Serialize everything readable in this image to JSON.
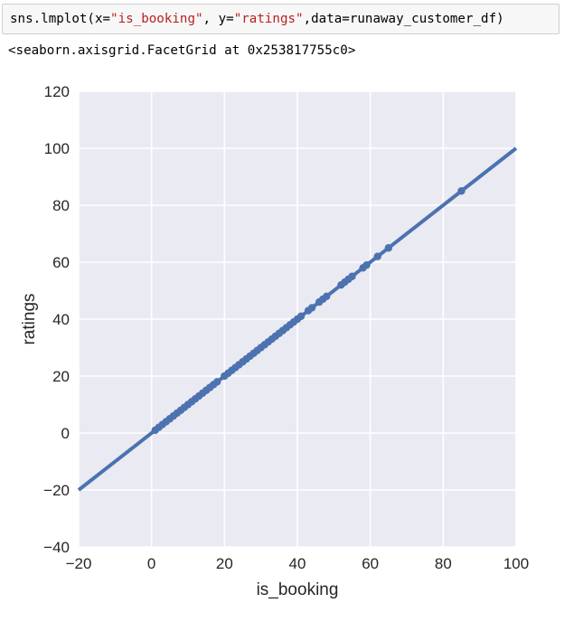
{
  "cell": {
    "code_parts": [
      {
        "text": "sns.lmplot(x=",
        "type": "plain"
      },
      {
        "text": "\"is_booking\"",
        "type": "str"
      },
      {
        "text": ", y=",
        "type": "plain"
      },
      {
        "text": "\"ratings\"",
        "type": "str"
      },
      {
        "text": ",data=runaway_customer_df)",
        "type": "plain"
      }
    ],
    "output": "<seaborn.axisgrid.FacetGrid at 0x253817755c0>"
  },
  "chart_data": {
    "type": "scatter",
    "xlabel": "is_booking",
    "ylabel": "ratings",
    "xlim": [
      -20,
      100
    ],
    "ylim": [
      -40,
      120
    ],
    "x_ticks": [
      -20,
      0,
      20,
      40,
      60,
      80,
      100
    ],
    "y_ticks": [
      -40,
      -20,
      0,
      20,
      40,
      60,
      80,
      100,
      120
    ],
    "grid": true,
    "point_color": "#4c72b0",
    "background_color": "#eaeaf2",
    "regression_line": {
      "slope": 1,
      "intercept": 0,
      "x_range": [
        -20,
        100
      ]
    },
    "points": [
      {
        "x": 1,
        "y": 1
      },
      {
        "x": 2,
        "y": 2
      },
      {
        "x": 3,
        "y": 3
      },
      {
        "x": 4,
        "y": 4
      },
      {
        "x": 5,
        "y": 5
      },
      {
        "x": 6,
        "y": 6
      },
      {
        "x": 7,
        "y": 7
      },
      {
        "x": 8,
        "y": 8
      },
      {
        "x": 9,
        "y": 9
      },
      {
        "x": 10,
        "y": 10
      },
      {
        "x": 11,
        "y": 11
      },
      {
        "x": 12,
        "y": 12
      },
      {
        "x": 13,
        "y": 13
      },
      {
        "x": 14,
        "y": 14
      },
      {
        "x": 15,
        "y": 15
      },
      {
        "x": 16,
        "y": 16
      },
      {
        "x": 17,
        "y": 17
      },
      {
        "x": 18,
        "y": 18
      },
      {
        "x": 20,
        "y": 20
      },
      {
        "x": 21,
        "y": 21
      },
      {
        "x": 22,
        "y": 22
      },
      {
        "x": 23,
        "y": 23
      },
      {
        "x": 24,
        "y": 24
      },
      {
        "x": 25,
        "y": 25
      },
      {
        "x": 26,
        "y": 26
      },
      {
        "x": 27,
        "y": 27
      },
      {
        "x": 28,
        "y": 28
      },
      {
        "x": 29,
        "y": 29
      },
      {
        "x": 30,
        "y": 30
      },
      {
        "x": 31,
        "y": 31
      },
      {
        "x": 32,
        "y": 32
      },
      {
        "x": 33,
        "y": 33
      },
      {
        "x": 34,
        "y": 34
      },
      {
        "x": 35,
        "y": 35
      },
      {
        "x": 36,
        "y": 36
      },
      {
        "x": 37,
        "y": 37
      },
      {
        "x": 38,
        "y": 38
      },
      {
        "x": 39,
        "y": 39
      },
      {
        "x": 40,
        "y": 40
      },
      {
        "x": 41,
        "y": 41
      },
      {
        "x": 43,
        "y": 43
      },
      {
        "x": 44,
        "y": 44
      },
      {
        "x": 46,
        "y": 46
      },
      {
        "x": 47,
        "y": 47
      },
      {
        "x": 48,
        "y": 48
      },
      {
        "x": 52,
        "y": 52
      },
      {
        "x": 53,
        "y": 53
      },
      {
        "x": 54,
        "y": 54
      },
      {
        "x": 55,
        "y": 55
      },
      {
        "x": 58,
        "y": 58
      },
      {
        "x": 59,
        "y": 59
      },
      {
        "x": 62,
        "y": 62
      },
      {
        "x": 65,
        "y": 65
      },
      {
        "x": 85,
        "y": 85
      }
    ]
  }
}
